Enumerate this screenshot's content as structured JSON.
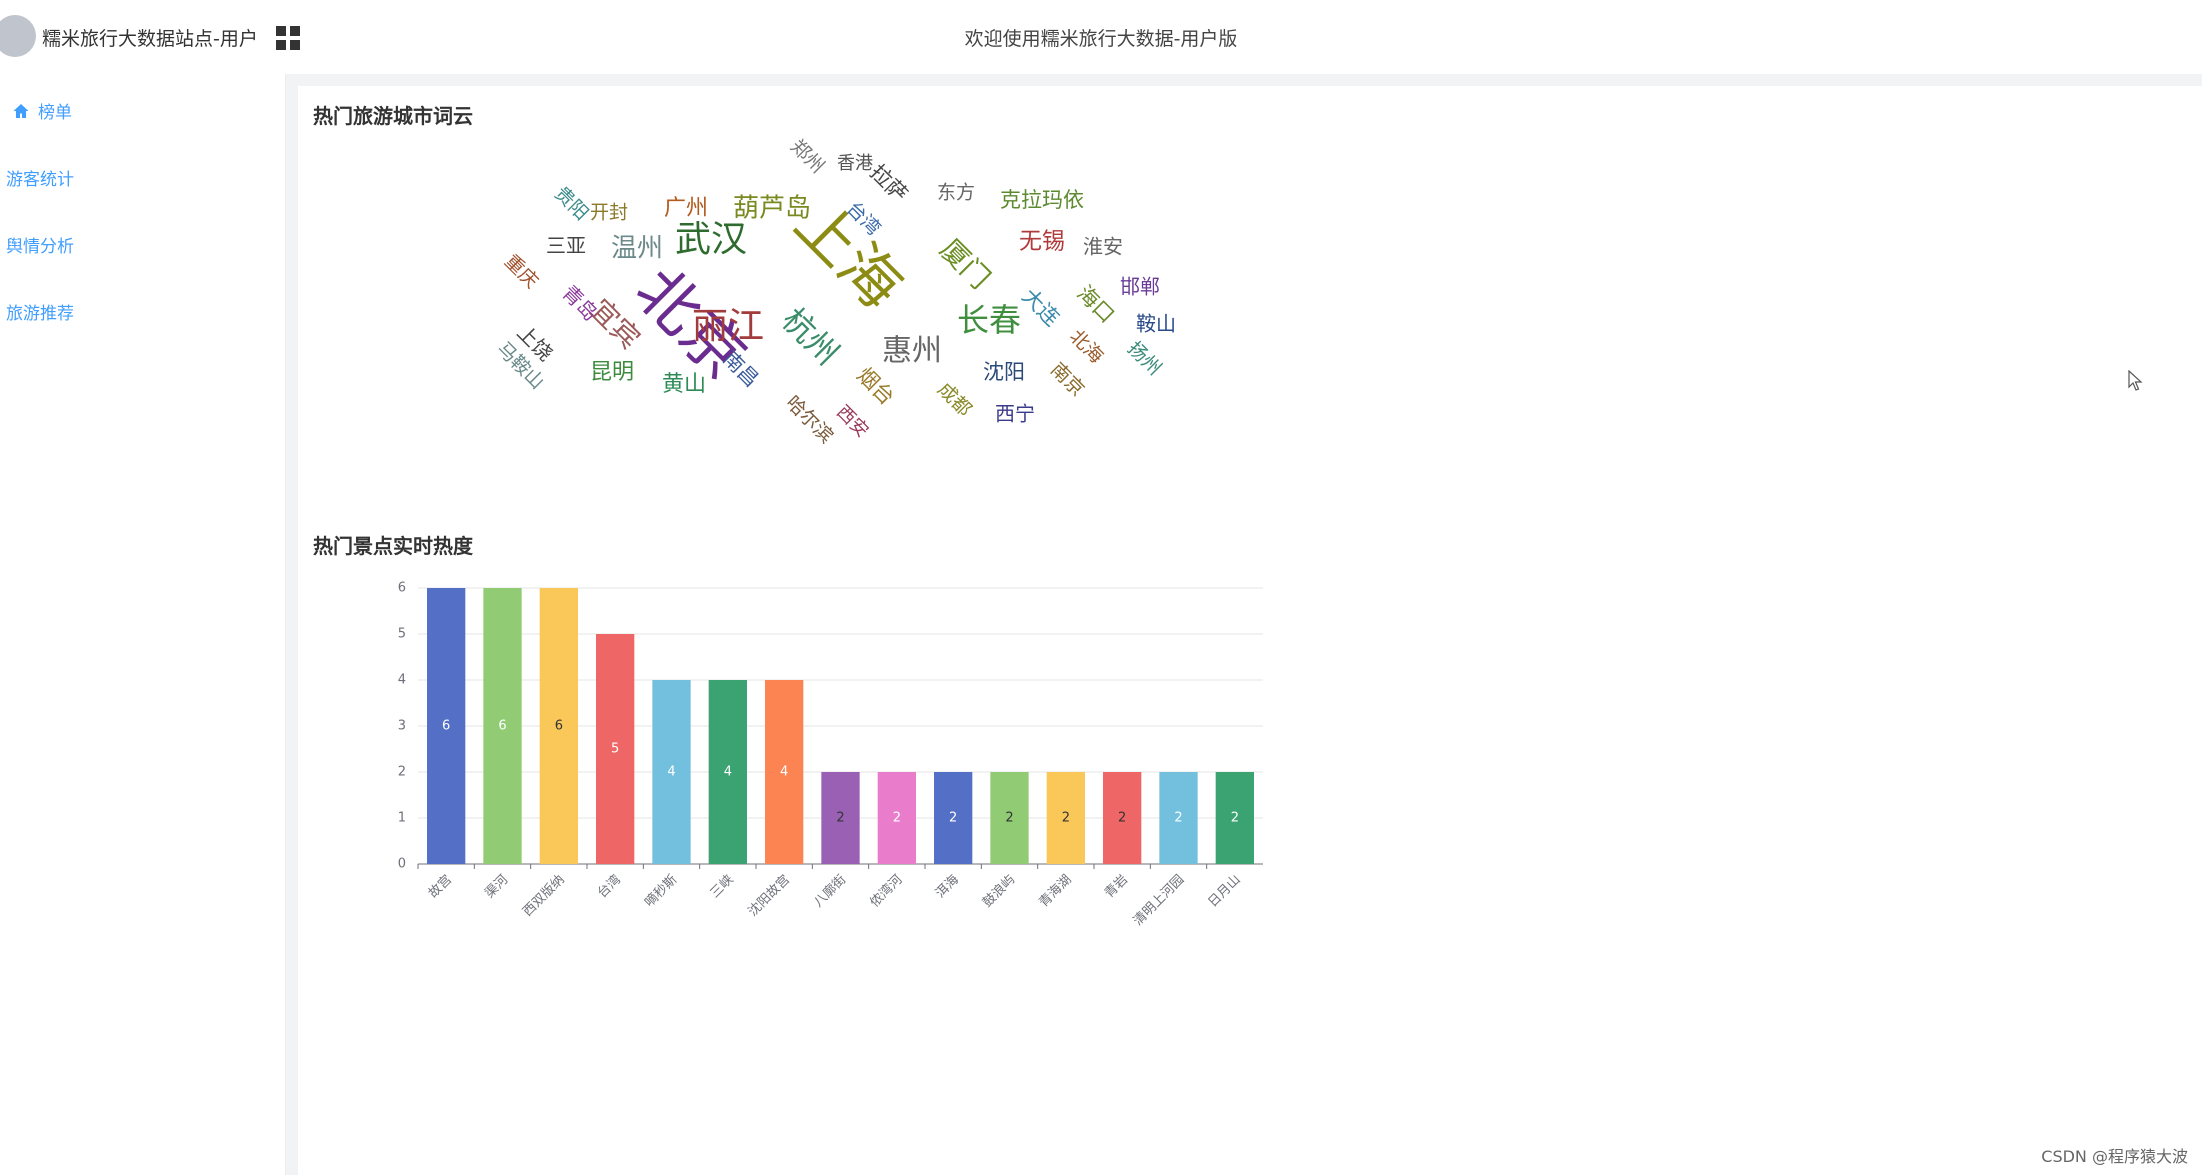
{
  "header": {
    "brand": "糯米旅行大数据站点-用户",
    "welcome": "欢迎使用糯米旅行大数据-用户版"
  },
  "sidebar": {
    "items": [
      {
        "label": "榜单",
        "active": true,
        "icon": "home-icon"
      },
      {
        "label": "游客统计",
        "active": false
      },
      {
        "label": "舆情分析",
        "active": false
      },
      {
        "label": "旅游推荐",
        "active": false
      }
    ]
  },
  "wordcloud": {
    "title": "热门旅游城市词云",
    "words": [
      {
        "text": "北京",
        "color": "#6a2c8f"
      },
      {
        "text": "上海",
        "color": "#8c8c14"
      },
      {
        "text": "武汉",
        "color": "#2e6b2e"
      },
      {
        "text": "丽江",
        "color": "#a23b3b"
      },
      {
        "text": "杭州",
        "color": "#3a8c6a"
      },
      {
        "text": "惠州",
        "color": "#666666"
      },
      {
        "text": "长春",
        "color": "#3f8f3f"
      },
      {
        "text": "厦门",
        "color": "#6b8e23"
      },
      {
        "text": "葫芦岛",
        "color": "#7a8a20"
      },
      {
        "text": "温州",
        "color": "#6d8a8a"
      },
      {
        "text": "宜宾",
        "color": "#9b5a5a"
      },
      {
        "text": "广州",
        "color": "#b35a1f"
      },
      {
        "text": "克拉玛依",
        "color": "#5d8a2e"
      },
      {
        "text": "无锡",
        "color": "#b03a3a"
      },
      {
        "text": "黄山",
        "color": "#2e8b57"
      },
      {
        "text": "昆明",
        "color": "#3d8b3d"
      },
      {
        "text": "沈阳",
        "color": "#2b4a7a"
      },
      {
        "text": "西宁",
        "color": "#3a3a8a"
      },
      {
        "text": "淮安",
        "color": "#666666"
      },
      {
        "text": "邯郸",
        "color": "#6a3c9a"
      },
      {
        "text": "鞍山",
        "color": "#2a4a8a"
      },
      {
        "text": "三亚",
        "color": "#444444"
      },
      {
        "text": "开封",
        "color": "#8a7a2a"
      },
      {
        "text": "东方",
        "color": "#666666"
      },
      {
        "text": "香港",
        "color": "#555555"
      },
      {
        "text": "郑州",
        "color": "#777777"
      },
      {
        "text": "拉萨",
        "color": "#444444"
      },
      {
        "text": "台湾",
        "color": "#3a6aa8"
      },
      {
        "text": "贵阳",
        "color": "#3a8a8a"
      },
      {
        "text": "重庆",
        "color": "#a0522d"
      },
      {
        "text": "青岛",
        "color": "#8a3a9a"
      },
      {
        "text": "上饶",
        "color": "#444444"
      },
      {
        "text": "马鞍山",
        "color": "#6a8a8a"
      },
      {
        "text": "南昌",
        "color": "#3a5a9a"
      },
      {
        "text": "哈尔滨",
        "color": "#7a5a3a"
      },
      {
        "text": "西安",
        "color": "#9a3a5a"
      },
      {
        "text": "烟台",
        "color": "#9a7a2a"
      },
      {
        "text": "成都",
        "color": "#8a8a2a"
      },
      {
        "text": "大连",
        "color": "#3a8aaa"
      },
      {
        "text": "海口",
        "color": "#6a8a2a"
      },
      {
        "text": "北海",
        "color": "#9a5a2a"
      },
      {
        "text": "南京",
        "color": "#8a6a2a"
      },
      {
        "text": "扬州",
        "color": "#3a8a7a"
      }
    ]
  },
  "barchart": {
    "title": "热门景点实时热度"
  },
  "chart_data": {
    "type": "bar",
    "categories": [
      "故宫",
      "渠河",
      "西双版纳",
      "台湾",
      "嘀秒斯",
      "三峡",
      "沈阳故宫",
      "八廓街",
      "侬湾河",
      "洱海",
      "鼓浪屿",
      "青海湖",
      "青岩",
      "清明上河园",
      "日月山"
    ],
    "values": [
      6,
      6,
      6,
      5,
      4,
      4,
      4,
      2,
      2,
      2,
      2,
      2,
      2,
      2,
      2
    ],
    "colors": [
      "#5470c6",
      "#91cc75",
      "#fac858",
      "#ee6666",
      "#73c0de",
      "#3ba272",
      "#fc8452",
      "#9a60b4",
      "#ea7ccc",
      "#5470c6",
      "#91cc75",
      "#fac858",
      "#ee6666",
      "#73c0de",
      "#3ba272"
    ],
    "yticks": [
      "0",
      "1",
      "2",
      "3",
      "4",
      "5",
      "6"
    ],
    "ylim": [
      0,
      6
    ],
    "grid": true,
    "xlabel": "",
    "ylabel": ""
  },
  "watermark": "CSDN @程序猿大波"
}
